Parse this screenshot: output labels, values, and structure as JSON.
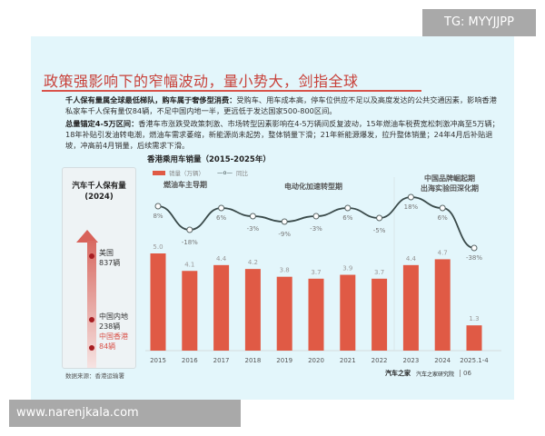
{
  "title": "政策强影响下的窄幅波动，量小势大，剑指全球",
  "para1": {
    "bold": "千人保有量属全球最低梯队，购车属于奢侈型消费：",
    "text": "受购车、用车成本高，停车位供应不足以及高度发达的公共交通因素，影响香港私家车千人保有量仅84辆，不足中国内地一半，更远低于发达国家500-800区间。"
  },
  "para2": {
    "bold": "总量锚定4-5万区间：",
    "text": "香港车市涨跌受政策刺激、市场转型因素影响在4-5万辆间反复波动，15年燃油车税费宽松刺激冲高至5万辆；18年补贴引发油转电潮，燃油车需求萎缩，新能源尚未起势，整体销量下滑；21年新能源爆发，拉升整体销量；24年4月后补贴退坡，冲高前4月销量，后续需求下滑。"
  },
  "left_panel": {
    "title": "汽车千人保有量",
    "subtitle": "(2024)",
    "items": [
      {
        "name": "美国",
        "value": "837辆"
      },
      {
        "name": "中国内地",
        "value": "238辆"
      },
      {
        "name": "中国香港",
        "value": "84辆"
      }
    ]
  },
  "periods": [
    "燃油车主导期",
    "电动化加速转型期",
    "中国品牌崛起期",
    "出海实验田深化期"
  ],
  "chart_data": {
    "type": "bar",
    "title": "香港乘用车销量（2015-2025年）",
    "categories": [
      "2015",
      "2016",
      "2017",
      "2018",
      "2019",
      "2020",
      "2021",
      "2022",
      "2023",
      "2024",
      "2025.1-4"
    ],
    "series": [
      {
        "name": "销量（万辆）",
        "type": "bar",
        "color": "#e05a45",
        "values": [
          5.0,
          4.1,
          4.4,
          4.2,
          3.8,
          3.7,
          3.9,
          3.7,
          4.4,
          4.7,
          1.3
        ],
        "labels": [
          "5.0",
          "4.1",
          "4.4",
          "4.2",
          "3.8",
          "3.7",
          "3.9",
          "3.7",
          "4.4",
          "4.7",
          "1.3"
        ]
      },
      {
        "name": "同比",
        "type": "line",
        "color": "#3a4a4a",
        "values": [
          8,
          -18,
          6,
          -3,
          -9,
          -3,
          6,
          -5,
          18,
          6,
          -38
        ],
        "labels": [
          "8%",
          "-18%",
          "6%",
          "-3%",
          "-9%",
          "-3%",
          "6%",
          "-5%",
          "18%",
          "6%",
          "-38%"
        ]
      }
    ],
    "ylim": [
      0,
      5.0
    ],
    "grid": false,
    "legend": "top-left"
  },
  "source": "数据来源：香港运输署",
  "brand": {
    "logo1": "汽车之家",
    "logo2": "汽车之家研究院",
    "page": "06"
  },
  "watermarks": {
    "top": "TG: MYYJJPP",
    "bottom": "www.narenjkala.com"
  }
}
